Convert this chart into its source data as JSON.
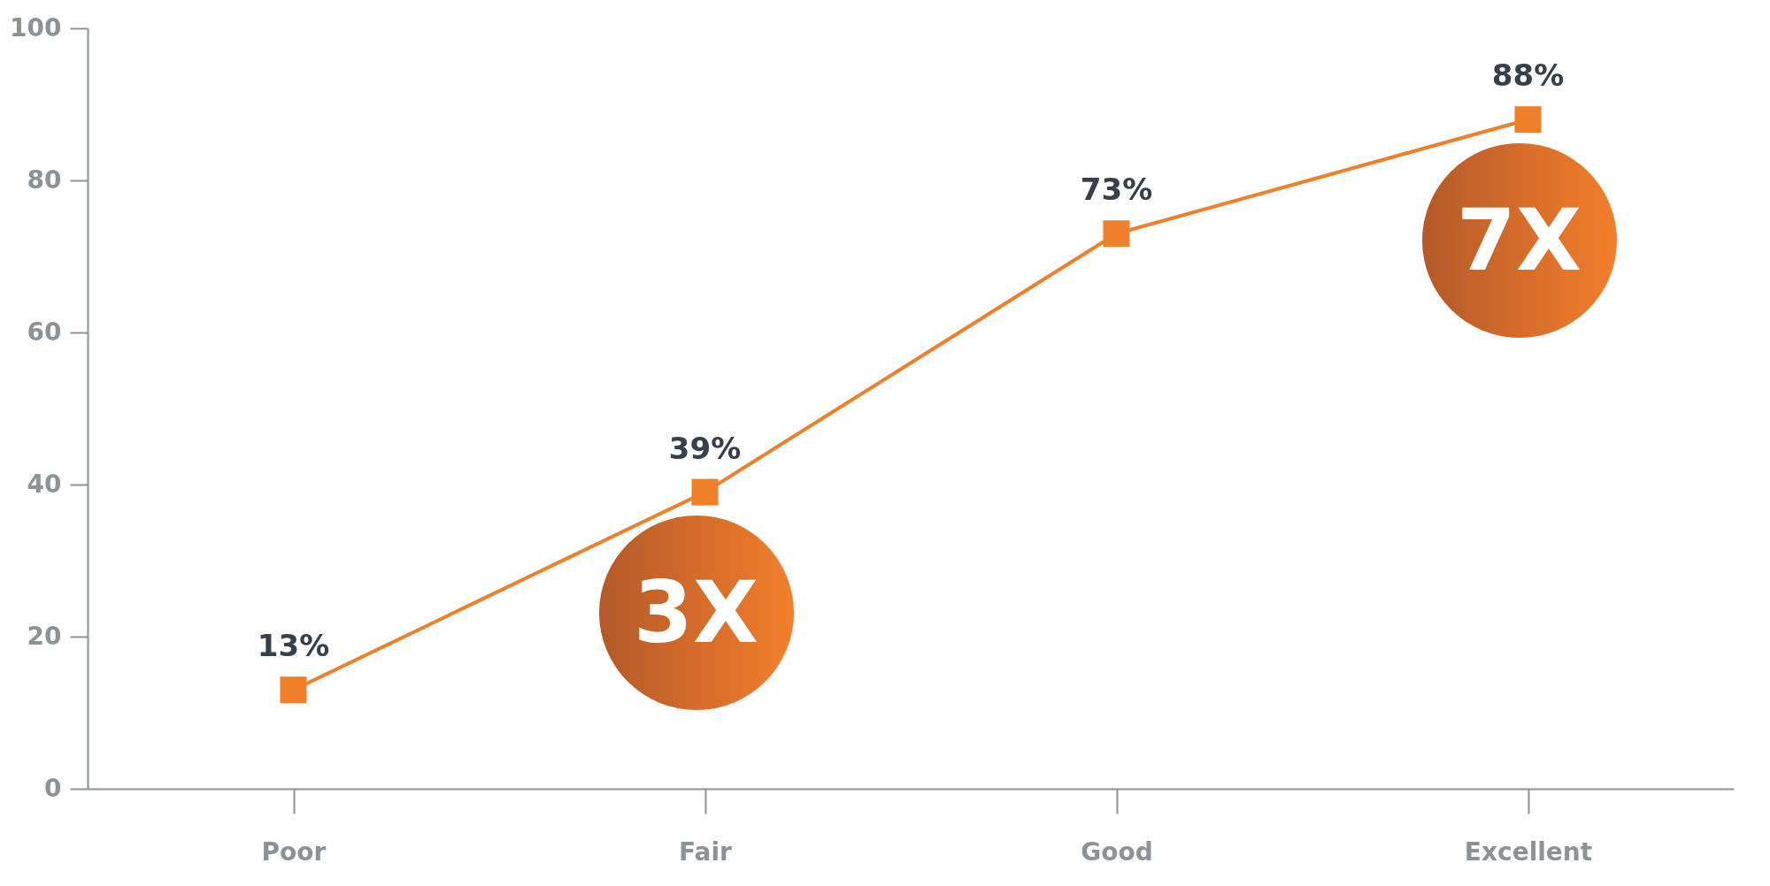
{
  "chart_data": {
    "type": "line",
    "categories": [
      "Poor",
      "Fair",
      "Good",
      "Excellent"
    ],
    "series": [
      {
        "color": "#f07f2a",
        "values": [
          13,
          39,
          73,
          88
        ],
        "value_labels": [
          "13%",
          "39%",
          "73%",
          "88%"
        ]
      }
    ],
    "ylim": [
      0,
      100
    ],
    "yticks": [
      0,
      20,
      40,
      60,
      80,
      100
    ],
    "marker": "square",
    "line_style": "solid",
    "grid": false,
    "annotations": [
      "3X",
      "7X"
    ]
  }
}
